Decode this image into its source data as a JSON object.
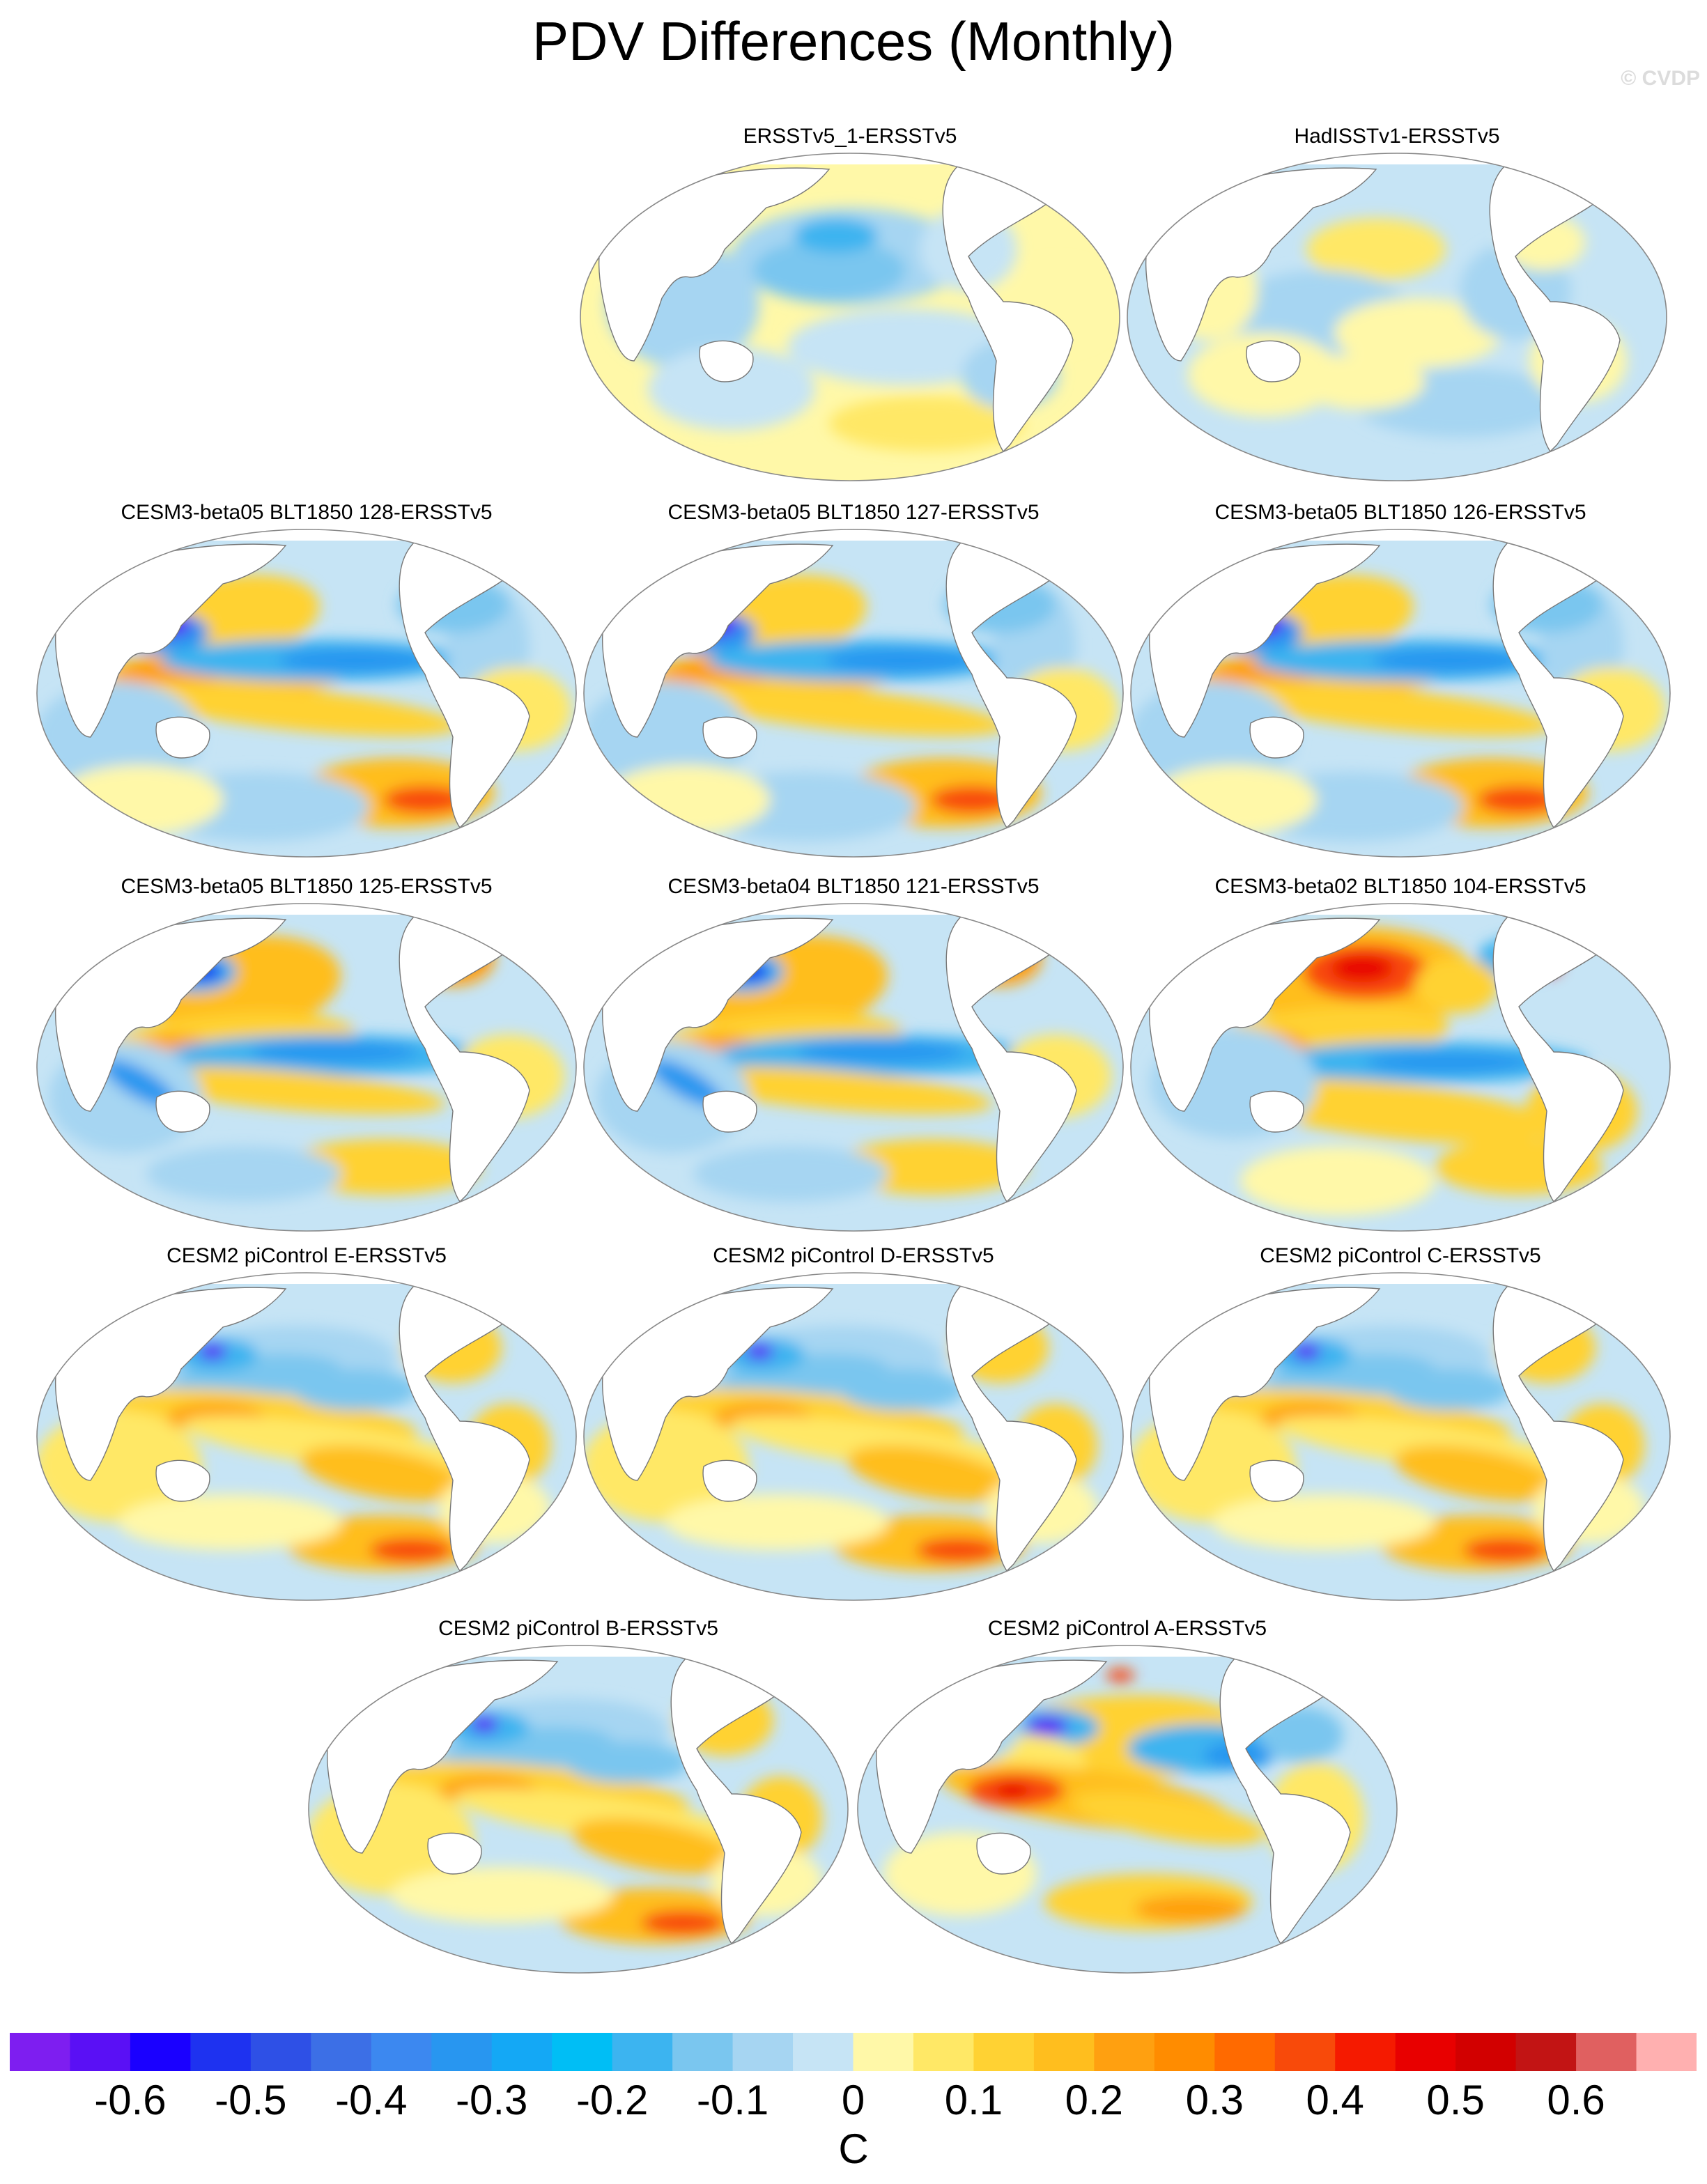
{
  "title": "PDV Differences (Monthly)",
  "watermark": "© CVDP",
  "panels": [
    {
      "label": "ERSSTv5_1-ERSSTv5",
      "pattern": 1
    },
    {
      "label": "HadISSTv1-ERSSTv5",
      "pattern": 2
    },
    {
      "label": "CESM3-beta05 BLT1850 128-ERSSTv5",
      "pattern": 3
    },
    {
      "label": "CESM3-beta05 BLT1850 127-ERSSTv5",
      "pattern": 3
    },
    {
      "label": "CESM3-beta05 BLT1850 126-ERSSTv5",
      "pattern": 3
    },
    {
      "label": "CESM3-beta05 BLT1850 125-ERSSTv5",
      "pattern": 4
    },
    {
      "label": "CESM3-beta04 BLT1850 121-ERSSTv5",
      "pattern": 4
    },
    {
      "label": "CESM3-beta02 BLT1850 104-ERSSTv5",
      "pattern": 5
    },
    {
      "label": "CESM2 piControl E-ERSSTv5",
      "pattern": 6
    },
    {
      "label": "CESM2 piControl D-ERSSTv5",
      "pattern": 6
    },
    {
      "label": "CESM2 piControl C-ERSSTv5",
      "pattern": 6
    },
    {
      "label": "CESM2 piControl B-ERSSTv5",
      "pattern": 6
    },
    {
      "label": "CESM2 piControl A-ERSSTv5",
      "pattern": 7
    }
  ],
  "colorbar": {
    "colors": [
      "#7e1ef0",
      "#5a10f5",
      "#1a00ff",
      "#1e32f0",
      "#2e50e6",
      "#3c6fe6",
      "#3c88f0",
      "#2896f0",
      "#14a8f5",
      "#00bef5",
      "#3cb4f0",
      "#7ac6ef",
      "#a6d5f2",
      "#c6e4f5",
      "#fff8a8",
      "#ffe866",
      "#ffd233",
      "#ffbe1e",
      "#ffa010",
      "#ff8c00",
      "#ff6a00",
      "#f84a0a",
      "#f51a00",
      "#e80000",
      "#d20000",
      "#c21414",
      "#e06060",
      "#ffb0b0"
    ],
    "tick_labels": [
      "-0.6",
      "-0.5",
      "-0.4",
      "-0.3",
      "-0.2",
      "-0.1",
      "0",
      "0.1",
      "0.2",
      "0.3",
      "0.4",
      "0.5",
      "0.6"
    ],
    "units": "C"
  }
}
